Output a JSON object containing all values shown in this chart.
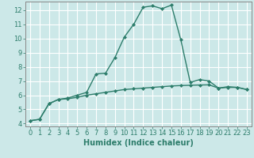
{
  "xlabel": "Humidex (Indice chaleur)",
  "x": [
    0,
    1,
    2,
    3,
    4,
    5,
    6,
    7,
    8,
    9,
    10,
    11,
    12,
    13,
    14,
    15,
    16,
    17,
    18,
    19,
    20,
    21,
    22,
    23
  ],
  "line1_y": [
    4.2,
    4.3,
    5.4,
    5.7,
    5.8,
    6.0,
    6.2,
    7.5,
    7.55,
    8.65,
    10.1,
    11.0,
    12.2,
    12.3,
    12.1,
    12.35,
    9.9,
    6.9,
    7.1,
    7.0,
    6.5,
    6.6,
    6.55,
    6.4
  ],
  "line2_y": [
    4.2,
    4.3,
    5.4,
    5.7,
    5.75,
    5.85,
    6.0,
    6.1,
    6.2,
    6.3,
    6.4,
    6.45,
    6.5,
    6.55,
    6.6,
    6.65,
    6.68,
    6.7,
    6.72,
    6.73,
    6.5,
    6.55,
    6.55,
    6.4
  ],
  "line_color": "#2d7d6b",
  "bg_color": "#cce8e8",
  "grid_color": "#b0d8d8",
  "ylim_min": 3.8,
  "ylim_max": 12.6,
  "xlim_min": -0.5,
  "xlim_max": 23.5,
  "yticks": [
    4,
    5,
    6,
    7,
    8,
    9,
    10,
    11,
    12
  ],
  "xticks": [
    0,
    1,
    2,
    3,
    4,
    5,
    6,
    7,
    8,
    9,
    10,
    11,
    12,
    13,
    14,
    15,
    16,
    17,
    18,
    19,
    20,
    21,
    22,
    23
  ],
  "tick_fontsize": 6,
  "xlabel_fontsize": 7,
  "marker": "D",
  "markersize": 2.0,
  "linewidth": 1.0
}
